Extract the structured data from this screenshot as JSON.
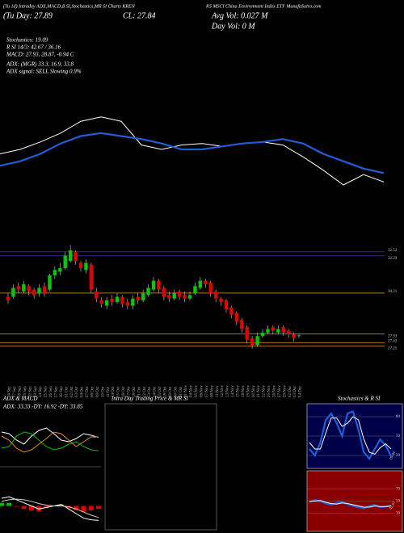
{
  "header": {
    "title_left": "(Tu 1d) Intraday ADX,MACD,B SI,Stochastics,MR SI Charts KREN",
    "title_right": "KS MSCI China Environment Index ETF MunafaSutra.com",
    "day": "(Tu Day: 27.89",
    "close": "CL: 27.84",
    "avg_vol": "Avg Vol: 0.027 M",
    "day_vol": "Day Vol: 0  M",
    "info": [
      "Stochastics: 19.09",
      "R SI 14/3: 42.67 / 36.16",
      "MACD: 27.93, 28.87, -0.94  C",
      "ADX:           (MGR) 33.3, 16.9, 33.8",
      "ADX  signal: SELL Slowing 0.9%"
    ]
  },
  "chart_data": [
    {
      "type": "candlestick",
      "up_color": "#00c800",
      "down_color": "#e00000",
      "ylim": [
        26.5,
        33.5
      ],
      "categories": [
        "16 Sep",
        "17 Sep",
        "18 Sep",
        "19 Sep",
        "20 Sep",
        "23 Sep",
        "24 Sep",
        "25 Sep",
        "26 Sep",
        "27 Sep",
        "30 Sep",
        "01 Oct",
        "02 Oct",
        "03 Oct",
        "04 Oct",
        "07 Oct",
        "08 Oct",
        "09 Oct",
        "10 Oct",
        "11 Oct",
        "14 Oct",
        "15 Oct",
        "16 Oct",
        "17 Oct",
        "18 Oct",
        "21 Oct",
        "22 Oct",
        "23 Oct",
        "24 Oct",
        "25 Oct",
        "28 Oct",
        "29 Oct",
        "30 Oct",
        "31 Oct",
        "01 Nov",
        "04 Nov",
        "05 Nov",
        "06 Nov",
        "07 Nov",
        "08 Nov",
        "11 Nov",
        "12 Nov",
        "13 Nov",
        "14 Nov",
        "15 Nov",
        "18 Nov",
        "19 Nov",
        "20 Nov",
        "21 Nov",
        "22 Nov",
        "25 Nov",
        "26 Nov",
        "27 Nov",
        "29 Nov",
        "02 Dec",
        "03 Dec",
        "04 Dec"
      ],
      "open": [
        30.0,
        30.0,
        30.6,
        30.3,
        30.6,
        30.4,
        30.2,
        30.6,
        30.4,
        31.2,
        31.4,
        31.6,
        32.0,
        32.5,
        31.9,
        31.5,
        31.8,
        30.3,
        29.8,
        29.5,
        29.9,
        29.7,
        30.0,
        29.7,
        29.5,
        30.0,
        29.8,
        30.1,
        30.4,
        30.9,
        30.5,
        30.1,
        29.9,
        30.3,
        30.1,
        29.9,
        30.2,
        30.5,
        30.9,
        30.8,
        30.3,
        29.9,
        29.8,
        29.4,
        29.1,
        28.7,
        28.3,
        27.7,
        27.3,
        27.8,
        28.0,
        28.3,
        28.0,
        28.3,
        28.1,
        27.9,
        27.8
      ],
      "high": [
        30.2,
        30.7,
        30.8,
        30.9,
        30.7,
        30.5,
        30.7,
        30.8,
        31.3,
        31.7,
        31.9,
        32.5,
        32.9,
        32.6,
        32.0,
        32.1,
        31.9,
        30.5,
        30.0,
        30.0,
        30.1,
        30.2,
        30.1,
        29.9,
        30.1,
        30.2,
        30.4,
        30.7,
        31.1,
        31.0,
        30.6,
        30.3,
        30.4,
        30.4,
        30.3,
        30.3,
        30.8,
        31.1,
        31.0,
        30.9,
        30.4,
        30.0,
        29.9,
        29.5,
        29.2,
        28.8,
        28.4,
        27.8,
        28.0,
        28.2,
        28.4,
        28.4,
        28.4,
        28.4,
        28.2,
        28.0,
        27.95
      ],
      "low": [
        29.6,
        29.9,
        30.2,
        30.2,
        30.1,
        29.9,
        30.0,
        30.0,
        30.3,
        31.0,
        31.2,
        31.5,
        31.9,
        31.8,
        31.4,
        31.3,
        30.2,
        29.7,
        29.4,
        29.3,
        29.5,
        29.6,
        29.4,
        29.3,
        29.3,
        29.6,
        29.7,
        30.0,
        30.3,
        30.2,
        29.8,
        29.7,
        29.8,
        29.8,
        29.7,
        29.8,
        30.1,
        30.4,
        30.5,
        30.0,
        29.7,
        29.5,
        29.1,
        28.8,
        28.4,
        28.0,
        27.4,
        27.1,
        27.2,
        27.7,
        27.9,
        27.9,
        27.9,
        27.8,
        27.7,
        27.5,
        27.7
      ],
      "close": [
        29.8,
        30.5,
        30.4,
        30.7,
        30.3,
        30.1,
        30.5,
        30.2,
        31.2,
        31.5,
        31.6,
        32.3,
        32.6,
        32.0,
        31.6,
        31.9,
        30.4,
        29.9,
        29.6,
        29.8,
        29.7,
        30.0,
        29.6,
        29.5,
        29.9,
        29.8,
        30.2,
        30.5,
        30.9,
        30.4,
        30.0,
        29.9,
        30.2,
        30.0,
        29.9,
        30.1,
        30.6,
        30.9,
        30.7,
        30.2,
        29.9,
        29.7,
        29.3,
        29.0,
        28.6,
        28.2,
        27.6,
        27.3,
        27.8,
        28.0,
        28.2,
        28.1,
        28.2,
        28.0,
        27.9,
        27.7,
        27.84
      ],
      "levels": [
        {
          "value": 32.52,
          "color": "#28307a"
        },
        {
          "value": 32.29,
          "color": "#28307a"
        },
        {
          "value": 30.21,
          "color": "#b07820"
        },
        {
          "value": 27.93,
          "color": "#b07820"
        },
        {
          "value": 27.43,
          "color": "#b07820"
        },
        {
          "value": 27.25,
          "color": "#b07820"
        }
      ]
    },
    {
      "type": "line",
      "ylim": [
        27,
        33
      ],
      "series": [
        {
          "color": "#ffffff",
          "values": [
            29.7,
            30.0,
            30.5,
            31.1,
            31.9,
            32.2,
            31.9,
            30.3,
            30.0,
            30.3,
            30.4,
            30.2,
            30.4,
            30.5,
            30.3,
            29.5,
            28.6,
            27.6,
            28.3,
            27.8
          ]
        },
        {
          "color": "#1e5fd8",
          "values": [
            28.9,
            29.2,
            29.7,
            30.4,
            30.9,
            31.1,
            30.9,
            30.7,
            30.4,
            30.0,
            30.0,
            30.2,
            30.4,
            30.5,
            30.7,
            30.4,
            29.7,
            29.2,
            28.7,
            28.4
          ]
        }
      ]
    },
    {
      "type": "adx",
      "title": "ADX  & MACD",
      "subtitle": "ADX: 33.33  -DY: 16.92  -DY: 33.85",
      "ylim": [
        0,
        60
      ],
      "series": [
        {
          "color": "#ffffff",
          "values": [
            40,
            38,
            30,
            25,
            35,
            42,
            45,
            38,
            30,
            28,
            32,
            38,
            36,
            33.33
          ]
        },
        {
          "color": "#00c000",
          "values": [
            20,
            22,
            35,
            40,
            38,
            30,
            22,
            18,
            20,
            25,
            28,
            22,
            18,
            16.92
          ]
        },
        {
          "color": "#e08a20",
          "values": [
            35,
            30,
            20,
            15,
            18,
            25,
            32,
            40,
            38,
            30,
            22,
            28,
            34,
            33.85
          ]
        }
      ]
    },
    {
      "type": "macd",
      "ylim": [
        -1.5,
        1.5
      ],
      "hist_up_color": "#00c000",
      "hist_down_color": "#e00000",
      "series": [
        {
          "color": "#ffffff",
          "values": [
            0.5,
            0.6,
            0.4,
            0.2,
            0,
            -0.2,
            -0.1,
            0,
            0.1,
            -0.2,
            -0.5,
            -0.8,
            -0.9,
            -0.94
          ]
        },
        {
          "color": "#cccccc",
          "values": [
            0.3,
            0.4,
            0.45,
            0.4,
            0.3,
            0.15,
            0.05,
            0,
            0,
            -0.05,
            -0.2,
            -0.4,
            -0.6,
            -0.75
          ]
        }
      ],
      "histogram": [
        0.2,
        0.2,
        -0.05,
        -0.2,
        -0.3,
        -0.35,
        -0.15,
        0,
        0.1,
        -0.15,
        -0.3,
        -0.4,
        -0.3,
        -0.19
      ]
    },
    {
      "type": "box",
      "title": "Intra Day Trading Price  & MR          SI"
    },
    {
      "type": "stoch",
      "title": "Stochastics & R          SI",
      "background": "#00004a",
      "ylim": [
        0,
        100
      ],
      "yticks": [
        80,
        50,
        20
      ],
      "last_label": 19.09,
      "series": [
        {
          "color": "#1e5fd8",
          "values": [
            30,
            20,
            40,
            75,
            85,
            70,
            50,
            85,
            88,
            60,
            25,
            15,
            30,
            45,
            35,
            19.09
          ]
        },
        {
          "color": "#ffffff",
          "values": [
            40,
            30,
            30,
            55,
            78,
            78,
            65,
            70,
            80,
            75,
            45,
            25,
            22,
            32,
            38,
            30
          ]
        }
      ]
    },
    {
      "type": "rsi",
      "background": "#8a0000",
      "ylim": [
        0,
        100
      ],
      "yticks": [
        70,
        50,
        30
      ],
      "last_label": 42.67,
      "series": [
        {
          "color": "#1e5fd8",
          "values": [
            48,
            52,
            50,
            46,
            44,
            47,
            49,
            45,
            42,
            40,
            38,
            42,
            44,
            40,
            41,
            42.67
          ]
        },
        {
          "color": "#ffffff",
          "values": [
            50,
            50,
            51,
            48,
            46,
            45,
            47,
            46,
            44,
            42,
            40,
            40,
            42,
            41,
            41,
            42
          ]
        }
      ]
    }
  ]
}
